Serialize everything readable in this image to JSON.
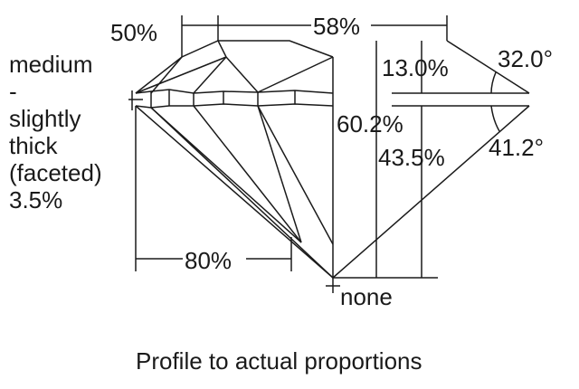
{
  "labels": {
    "crown_height_pct": "13.0%",
    "crown_angle": "32.0°",
    "total_depth_pct": "60.2%",
    "pavilion_depth_pct": "43.5%",
    "pavilion_angle": "41.2°",
    "table_pct": "58%",
    "star_length_pct": "50%",
    "lower_half_pct": "80%",
    "culet": "none",
    "girdle_lines": [
      "medium",
      "-",
      "slightly",
      "thick",
      "(faceted)",
      "3.5%"
    ]
  },
  "caption": "Profile to actual proportions"
}
